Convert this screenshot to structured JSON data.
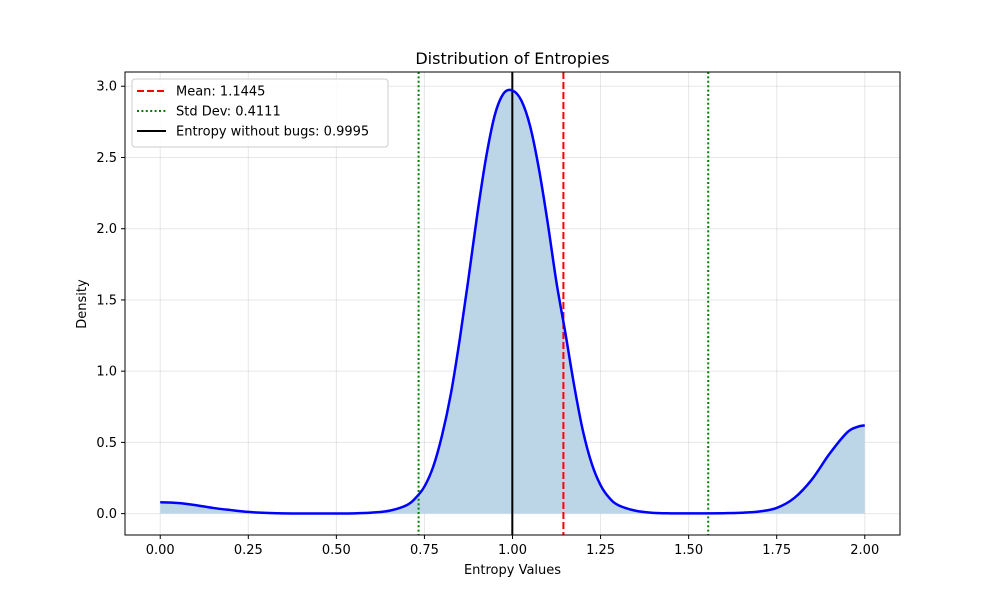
{
  "chart_data": {
    "type": "line",
    "title": "Distribution of Entropies",
    "xlabel": "Entropy Values",
    "ylabel": "Density",
    "xlim": [
      -0.1,
      2.1
    ],
    "ylim": [
      -0.15,
      3.1
    ],
    "xticks": [
      "0.00",
      "0.25",
      "0.50",
      "0.75",
      "1.00",
      "1.25",
      "1.50",
      "1.75",
      "2.00"
    ],
    "yticks": [
      "0.0",
      "0.5",
      "1.0",
      "1.5",
      "2.0",
      "2.5",
      "3.0"
    ],
    "grid": true,
    "legend_position": "top-left",
    "series": [
      {
        "x": [
          0.0,
          0.05,
          0.1,
          0.15,
          0.2,
          0.25,
          0.3,
          0.35,
          0.4,
          0.45,
          0.5,
          0.55,
          0.6,
          0.65,
          0.7,
          0.725,
          0.75,
          0.775,
          0.8,
          0.825,
          0.85,
          0.875,
          0.9,
          0.925,
          0.95,
          0.975,
          1.0,
          1.025,
          1.05,
          1.075,
          1.1,
          1.125,
          1.15,
          1.175,
          1.2,
          1.225,
          1.25,
          1.275,
          1.3,
          1.35,
          1.4,
          1.45,
          1.5,
          1.55,
          1.6,
          1.65,
          1.7,
          1.75,
          1.8,
          1.85,
          1.9,
          1.95,
          1.98,
          2.0
        ],
        "y": [
          0.08,
          0.075,
          0.06,
          0.04,
          0.025,
          0.012,
          0.005,
          0.002,
          0.001,
          0.001,
          0.001,
          0.002,
          0.007,
          0.02,
          0.06,
          0.11,
          0.19,
          0.33,
          0.55,
          0.84,
          1.22,
          1.65,
          2.1,
          2.5,
          2.8,
          2.95,
          2.97,
          2.9,
          2.72,
          2.42,
          2.04,
          1.62,
          1.27,
          0.9,
          0.58,
          0.35,
          0.2,
          0.11,
          0.06,
          0.02,
          0.005,
          0.002,
          0.002,
          0.002,
          0.003,
          0.006,
          0.015,
          0.04,
          0.11,
          0.24,
          0.42,
          0.57,
          0.61,
          0.62
        ],
        "color": "#0000ff",
        "fill_color": "#bcd6e8"
      }
    ],
    "vlines": [
      {
        "name": "Mean: 1.1445",
        "x": 1.1445,
        "color": "#ff0000",
        "style": "dashed"
      },
      {
        "name": "Std Dev: 0.4111",
        "x": 0.7334,
        "color": "#008000",
        "style": "dotted"
      },
      {
        "x": 1.5556,
        "color": "#008000",
        "style": "dotted"
      },
      {
        "name": "Entropy without bugs: 0.9995",
        "x": 0.9995,
        "color": "#000000",
        "style": "solid"
      }
    ]
  }
}
